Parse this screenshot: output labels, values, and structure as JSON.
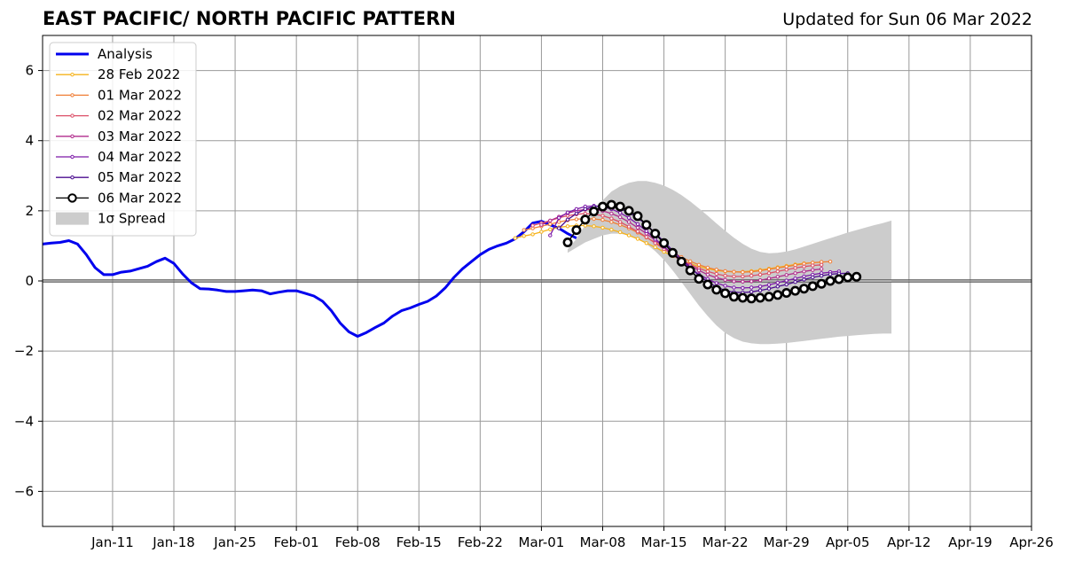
{
  "title": "EAST PACIFIC/ NORTH PACIFIC PATTERN",
  "updated": "Updated for Sun 06 Mar 2022",
  "chart_data": {
    "type": "line",
    "title": "EAST PACIFIC/ NORTH PACIFIC PATTERN",
    "subtitle": "Updated for Sun 06 Mar 2022",
    "xlabel": "",
    "ylabel": "",
    "x_axis_type": "date",
    "xlim": [
      "2022-01-03",
      "2022-04-26"
    ],
    "ylim": [
      -7,
      7
    ],
    "grid": true,
    "legend_position": "top-left",
    "x_ticks": [
      {
        "date": "2022-01-11",
        "label": "Jan-11"
      },
      {
        "date": "2022-01-18",
        "label": "Jan-18"
      },
      {
        "date": "2022-01-25",
        "label": "Jan-25"
      },
      {
        "date": "2022-02-01",
        "label": "Feb-01"
      },
      {
        "date": "2022-02-08",
        "label": "Feb-08"
      },
      {
        "date": "2022-02-15",
        "label": "Feb-15"
      },
      {
        "date": "2022-02-22",
        "label": "Feb-22"
      },
      {
        "date": "2022-03-01",
        "label": "Mar-01"
      },
      {
        "date": "2022-03-08",
        "label": "Mar-08"
      },
      {
        "date": "2022-03-15",
        "label": "Mar-15"
      },
      {
        "date": "2022-03-22",
        "label": "Mar-22"
      },
      {
        "date": "2022-03-29",
        "label": "Mar-29"
      },
      {
        "date": "2022-04-05",
        "label": "Apr-05"
      },
      {
        "date": "2022-04-12",
        "label": "Apr-12"
      },
      {
        "date": "2022-04-19",
        "label": "Apr-19"
      },
      {
        "date": "2022-04-26",
        "label": "Apr-26"
      }
    ],
    "y_ticks": [
      {
        "value": 6,
        "label": "6"
      },
      {
        "value": 4,
        "label": "4"
      },
      {
        "value": 2,
        "label": "2"
      },
      {
        "value": 0,
        "label": "0"
      },
      {
        "value": -2,
        "label": "−2"
      },
      {
        "value": -4,
        "label": "−4"
      },
      {
        "value": -6,
        "label": "−6"
      }
    ],
    "analysis": {
      "name": "Analysis",
      "color": "#0000ee",
      "points": [
        [
          "2022-01-03",
          1.05
        ],
        [
          "2022-01-04",
          1.08
        ],
        [
          "2022-01-05",
          1.1
        ],
        [
          "2022-01-06",
          1.15
        ],
        [
          "2022-01-07",
          1.05
        ],
        [
          "2022-01-08",
          0.75
        ],
        [
          "2022-01-09",
          0.38
        ],
        [
          "2022-01-10",
          0.18
        ],
        [
          "2022-01-11",
          0.18
        ],
        [
          "2022-01-12",
          0.25
        ],
        [
          "2022-01-13",
          0.28
        ],
        [
          "2022-01-14",
          0.35
        ],
        [
          "2022-01-15",
          0.42
        ],
        [
          "2022-01-16",
          0.55
        ],
        [
          "2022-01-17",
          0.65
        ],
        [
          "2022-01-18",
          0.5
        ],
        [
          "2022-01-19",
          0.2
        ],
        [
          "2022-01-20",
          -0.05
        ],
        [
          "2022-01-21",
          -0.22
        ],
        [
          "2022-01-22",
          -0.23
        ],
        [
          "2022-01-23",
          -0.26
        ],
        [
          "2022-01-24",
          -0.3
        ],
        [
          "2022-01-25",
          -0.3
        ],
        [
          "2022-01-26",
          -0.28
        ],
        [
          "2022-01-27",
          -0.26
        ],
        [
          "2022-01-28",
          -0.28
        ],
        [
          "2022-01-29",
          -0.37
        ],
        [
          "2022-01-30",
          -0.32
        ],
        [
          "2022-01-31",
          -0.28
        ],
        [
          "2022-02-01",
          -0.28
        ],
        [
          "2022-02-02",
          -0.35
        ],
        [
          "2022-02-03",
          -0.43
        ],
        [
          "2022-02-04",
          -0.58
        ],
        [
          "2022-02-05",
          -0.85
        ],
        [
          "2022-02-06",
          -1.2
        ],
        [
          "2022-02-07",
          -1.45
        ],
        [
          "2022-02-08",
          -1.58
        ],
        [
          "2022-02-09",
          -1.47
        ],
        [
          "2022-02-10",
          -1.33
        ],
        [
          "2022-02-11",
          -1.2
        ],
        [
          "2022-02-12",
          -1.0
        ],
        [
          "2022-02-13",
          -0.85
        ],
        [
          "2022-02-14",
          -0.77
        ],
        [
          "2022-02-15",
          -0.67
        ],
        [
          "2022-02-16",
          -0.58
        ],
        [
          "2022-02-17",
          -0.43
        ],
        [
          "2022-02-18",
          -0.2
        ],
        [
          "2022-02-19",
          0.1
        ],
        [
          "2022-02-20",
          0.35
        ],
        [
          "2022-02-21",
          0.55
        ],
        [
          "2022-02-22",
          0.75
        ],
        [
          "2022-02-23",
          0.9
        ],
        [
          "2022-02-24",
          1.0
        ],
        [
          "2022-02-25",
          1.08
        ],
        [
          "2022-02-26",
          1.2
        ],
        [
          "2022-02-27",
          1.4
        ],
        [
          "2022-02-28",
          1.65
        ],
        [
          "2022-03-01",
          1.7
        ],
        [
          "2022-03-02",
          1.6
        ],
        [
          "2022-03-03",
          1.5
        ],
        [
          "2022-03-04",
          1.35
        ],
        [
          "2022-03-05",
          1.22
        ]
      ]
    },
    "forecasts": [
      {
        "name": "28 Feb 2022",
        "color": "#f6b31c",
        "start": "2022-02-26",
        "values": [
          1.22,
          1.28,
          1.33,
          1.4,
          1.47,
          1.53,
          1.56,
          1.58,
          1.58,
          1.56,
          1.52,
          1.46,
          1.39,
          1.3,
          1.2,
          1.08,
          0.96,
          0.83,
          0.71,
          0.6,
          0.5,
          0.41,
          0.35,
          0.3,
          0.27,
          0.26,
          0.26,
          0.28,
          0.31,
          0.35,
          0.39,
          0.43,
          0.47,
          0.5,
          0.52,
          0.53
        ]
      },
      {
        "name": "01 Mar 2022",
        "color": "#f07e36",
        "start": "2022-02-27",
        "values": [
          1.45,
          1.5,
          1.56,
          1.62,
          1.68,
          1.73,
          1.76,
          1.78,
          1.77,
          1.74,
          1.68,
          1.6,
          1.5,
          1.38,
          1.24,
          1.1,
          0.95,
          0.81,
          0.68,
          0.56,
          0.46,
          0.38,
          0.32,
          0.28,
          0.26,
          0.25,
          0.26,
          0.29,
          0.33,
          0.37,
          0.41,
          0.45,
          0.49,
          0.52,
          0.54,
          0.55
        ]
      },
      {
        "name": "02 Mar 2022",
        "color": "#dc5068",
        "start": "2022-02-28",
        "values": [
          1.58,
          1.65,
          1.72,
          1.8,
          1.86,
          1.9,
          1.92,
          1.9,
          1.86,
          1.78,
          1.68,
          1.55,
          1.41,
          1.25,
          1.08,
          0.91,
          0.75,
          0.6,
          0.47,
          0.36,
          0.27,
          0.2,
          0.15,
          0.13,
          0.13,
          0.15,
          0.18,
          0.22,
          0.27,
          0.32,
          0.37,
          0.41,
          0.44,
          0.46
        ]
      },
      {
        "name": "03 Mar 2022",
        "color": "#b02b8c",
        "start": "2022-03-01",
        "values": [
          1.6,
          1.72,
          1.83,
          1.93,
          2.0,
          2.04,
          2.04,
          2.0,
          1.92,
          1.82,
          1.68,
          1.52,
          1.35,
          1.16,
          0.97,
          0.78,
          0.6,
          0.44,
          0.3,
          0.18,
          0.09,
          0.03,
          -0.01,
          -0.02,
          -0.01,
          0.02,
          0.07,
          0.12,
          0.17,
          0.22,
          0.27,
          0.31,
          0.34
        ]
      },
      {
        "name": "04 Mar 2022",
        "color": "#7c19a8",
        "start": "2022-03-02",
        "values": [
          1.3,
          1.8,
          1.95,
          2.05,
          2.12,
          2.14,
          2.12,
          2.05,
          1.94,
          1.8,
          1.62,
          1.42,
          1.2,
          0.98,
          0.76,
          0.55,
          0.36,
          0.19,
          0.05,
          -0.06,
          -0.14,
          -0.19,
          -0.2,
          -0.19,
          -0.16,
          -0.11,
          -0.05,
          0.01,
          0.07,
          0.13,
          0.18,
          0.22,
          0.25,
          0.27
        ]
      },
      {
        "name": "05 Mar 2022",
        "color": "#4b0d8f",
        "start": "2022-03-03",
        "values": [
          1.5,
          1.75,
          1.92,
          2.05,
          2.12,
          2.15,
          2.13,
          2.06,
          1.95,
          1.8,
          1.6,
          1.37,
          1.12,
          0.87,
          0.62,
          0.38,
          0.16,
          -0.03,
          -0.17,
          -0.27,
          -0.32,
          -0.33,
          -0.31,
          -0.27,
          -0.22,
          -0.16,
          -0.1,
          -0.03,
          0.04,
          0.1,
          0.15,
          0.19,
          0.21,
          0.22
        ]
      },
      {
        "name": "06 Mar 2022",
        "color": "#000000",
        "start": "2022-03-04",
        "values": [
          1.1,
          1.45,
          1.75,
          1.98,
          2.12,
          2.17,
          2.12,
          2.0,
          1.85,
          1.6,
          1.35,
          1.08,
          0.8,
          0.55,
          0.3,
          0.06,
          -0.1,
          -0.25,
          -0.35,
          -0.45,
          -0.48,
          -0.5,
          -0.48,
          -0.45,
          -0.4,
          -0.34,
          -0.28,
          -0.22,
          -0.15,
          -0.08,
          0.0,
          0.05,
          0.1,
          0.12
        ]
      }
    ],
    "spread": {
      "name": "1σ Spread",
      "color": "#cccccc",
      "x_start": "2022-03-04",
      "upper": [
        0.9,
        1.2,
        1.6,
        2.0,
        2.3,
        2.55,
        2.7,
        2.8,
        2.85,
        2.85,
        2.8,
        2.72,
        2.6,
        2.45,
        2.27,
        2.07,
        1.86,
        1.64,
        1.43,
        1.23,
        1.06,
        0.92,
        0.83,
        0.79,
        0.8,
        0.84,
        0.9,
        0.98,
        1.06,
        1.14,
        1.22,
        1.3,
        1.38,
        1.45,
        1.52,
        1.59,
        1.65,
        1.72
      ],
      "lower": [
        0.8,
        0.95,
        1.1,
        1.2,
        1.3,
        1.35,
        1.35,
        1.3,
        1.2,
        1.05,
        0.85,
        0.6,
        0.3,
        -0.03,
        -0.37,
        -0.7,
        -1.0,
        -1.27,
        -1.48,
        -1.63,
        -1.73,
        -1.78,
        -1.8,
        -1.8,
        -1.79,
        -1.77,
        -1.74,
        -1.71,
        -1.68,
        -1.65,
        -1.62,
        -1.59,
        -1.57,
        -1.55,
        -1.53,
        -1.51,
        -1.5,
        -1.5
      ]
    },
    "legend": [
      "Analysis",
      "28 Feb 2022",
      "01 Mar 2022",
      "02 Mar 2022",
      "03 Mar 2022",
      "04 Mar 2022",
      "05 Mar 2022",
      "06 Mar 2022",
      "1σ Spread"
    ]
  }
}
